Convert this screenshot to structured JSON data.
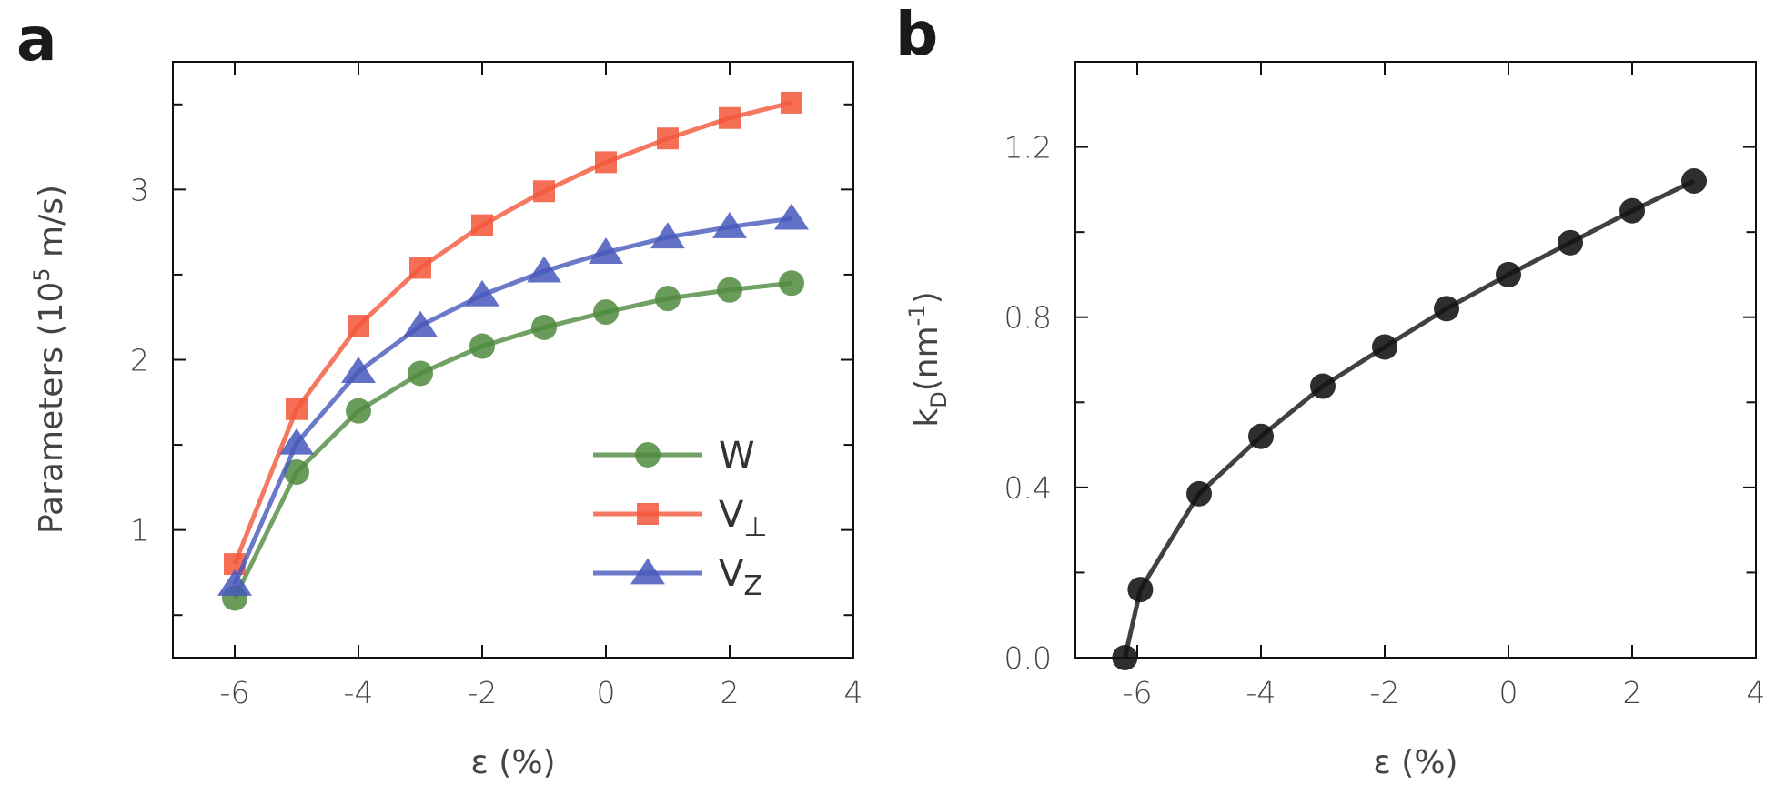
{
  "chart_data": [
    {
      "panel_label": "a",
      "type": "line",
      "xlabel": "ε (%)",
      "ylabel_parts": {
        "base": "Parameters (10",
        "sup": "5",
        "end": " m/s)"
      },
      "xlim": [
        -7,
        4
      ],
      "ylim": [
        0.25,
        3.75
      ],
      "xticks": [
        -6,
        -4,
        -2,
        0,
        2,
        4
      ],
      "yticks": [
        1,
        2,
        3
      ],
      "x": [
        -6,
        -5,
        -4,
        -3,
        -2,
        -1,
        0,
        1,
        2,
        3
      ],
      "legend_position": "lower-right",
      "series": [
        {
          "name": "W",
          "name_sub": "",
          "marker": "circle",
          "color": "#4f8a3e",
          "values": [
            0.6,
            1.34,
            1.7,
            1.92,
            2.08,
            2.19,
            2.28,
            2.36,
            2.41,
            2.45
          ]
        },
        {
          "name": "V",
          "name_sub": "⊥",
          "marker": "square",
          "color": "#f3563a",
          "values": [
            0.8,
            1.71,
            2.2,
            2.54,
            2.79,
            2.99,
            3.16,
            3.3,
            3.42,
            3.51
          ]
        },
        {
          "name": "V",
          "name_sub": "Z",
          "marker": "triangle",
          "color": "#4658bb",
          "values": [
            0.68,
            1.51,
            1.93,
            2.2,
            2.38,
            2.52,
            2.63,
            2.72,
            2.78,
            2.83
          ]
        }
      ]
    },
    {
      "panel_label": "b",
      "type": "line",
      "xlabel": "ε (%)",
      "ylabel_parts": {
        "base": "k",
        "sub": "D",
        "mid": "(nm",
        "sup": "-1",
        "end": ")"
      },
      "xlim": [
        -7,
        4
      ],
      "ylim": [
        0.0,
        1.4
      ],
      "xticks": [
        -6,
        -4,
        -2,
        0,
        2,
        4
      ],
      "yticks": [
        0.0,
        0.4,
        0.8,
        1.2
      ],
      "ytick_labels": [
        "0.0",
        "0.4",
        "0.8",
        "1.2"
      ],
      "series": [
        {
          "name": "kD",
          "marker": "circle",
          "color": "#111111",
          "x": [
            -6.2,
            -5.95,
            -5,
            -4,
            -3,
            -2,
            -1,
            0,
            1,
            2,
            3
          ],
          "values": [
            0.0,
            0.16,
            0.385,
            0.52,
            0.638,
            0.73,
            0.82,
            0.9,
            0.975,
            1.05,
            1.12
          ]
        }
      ]
    }
  ]
}
